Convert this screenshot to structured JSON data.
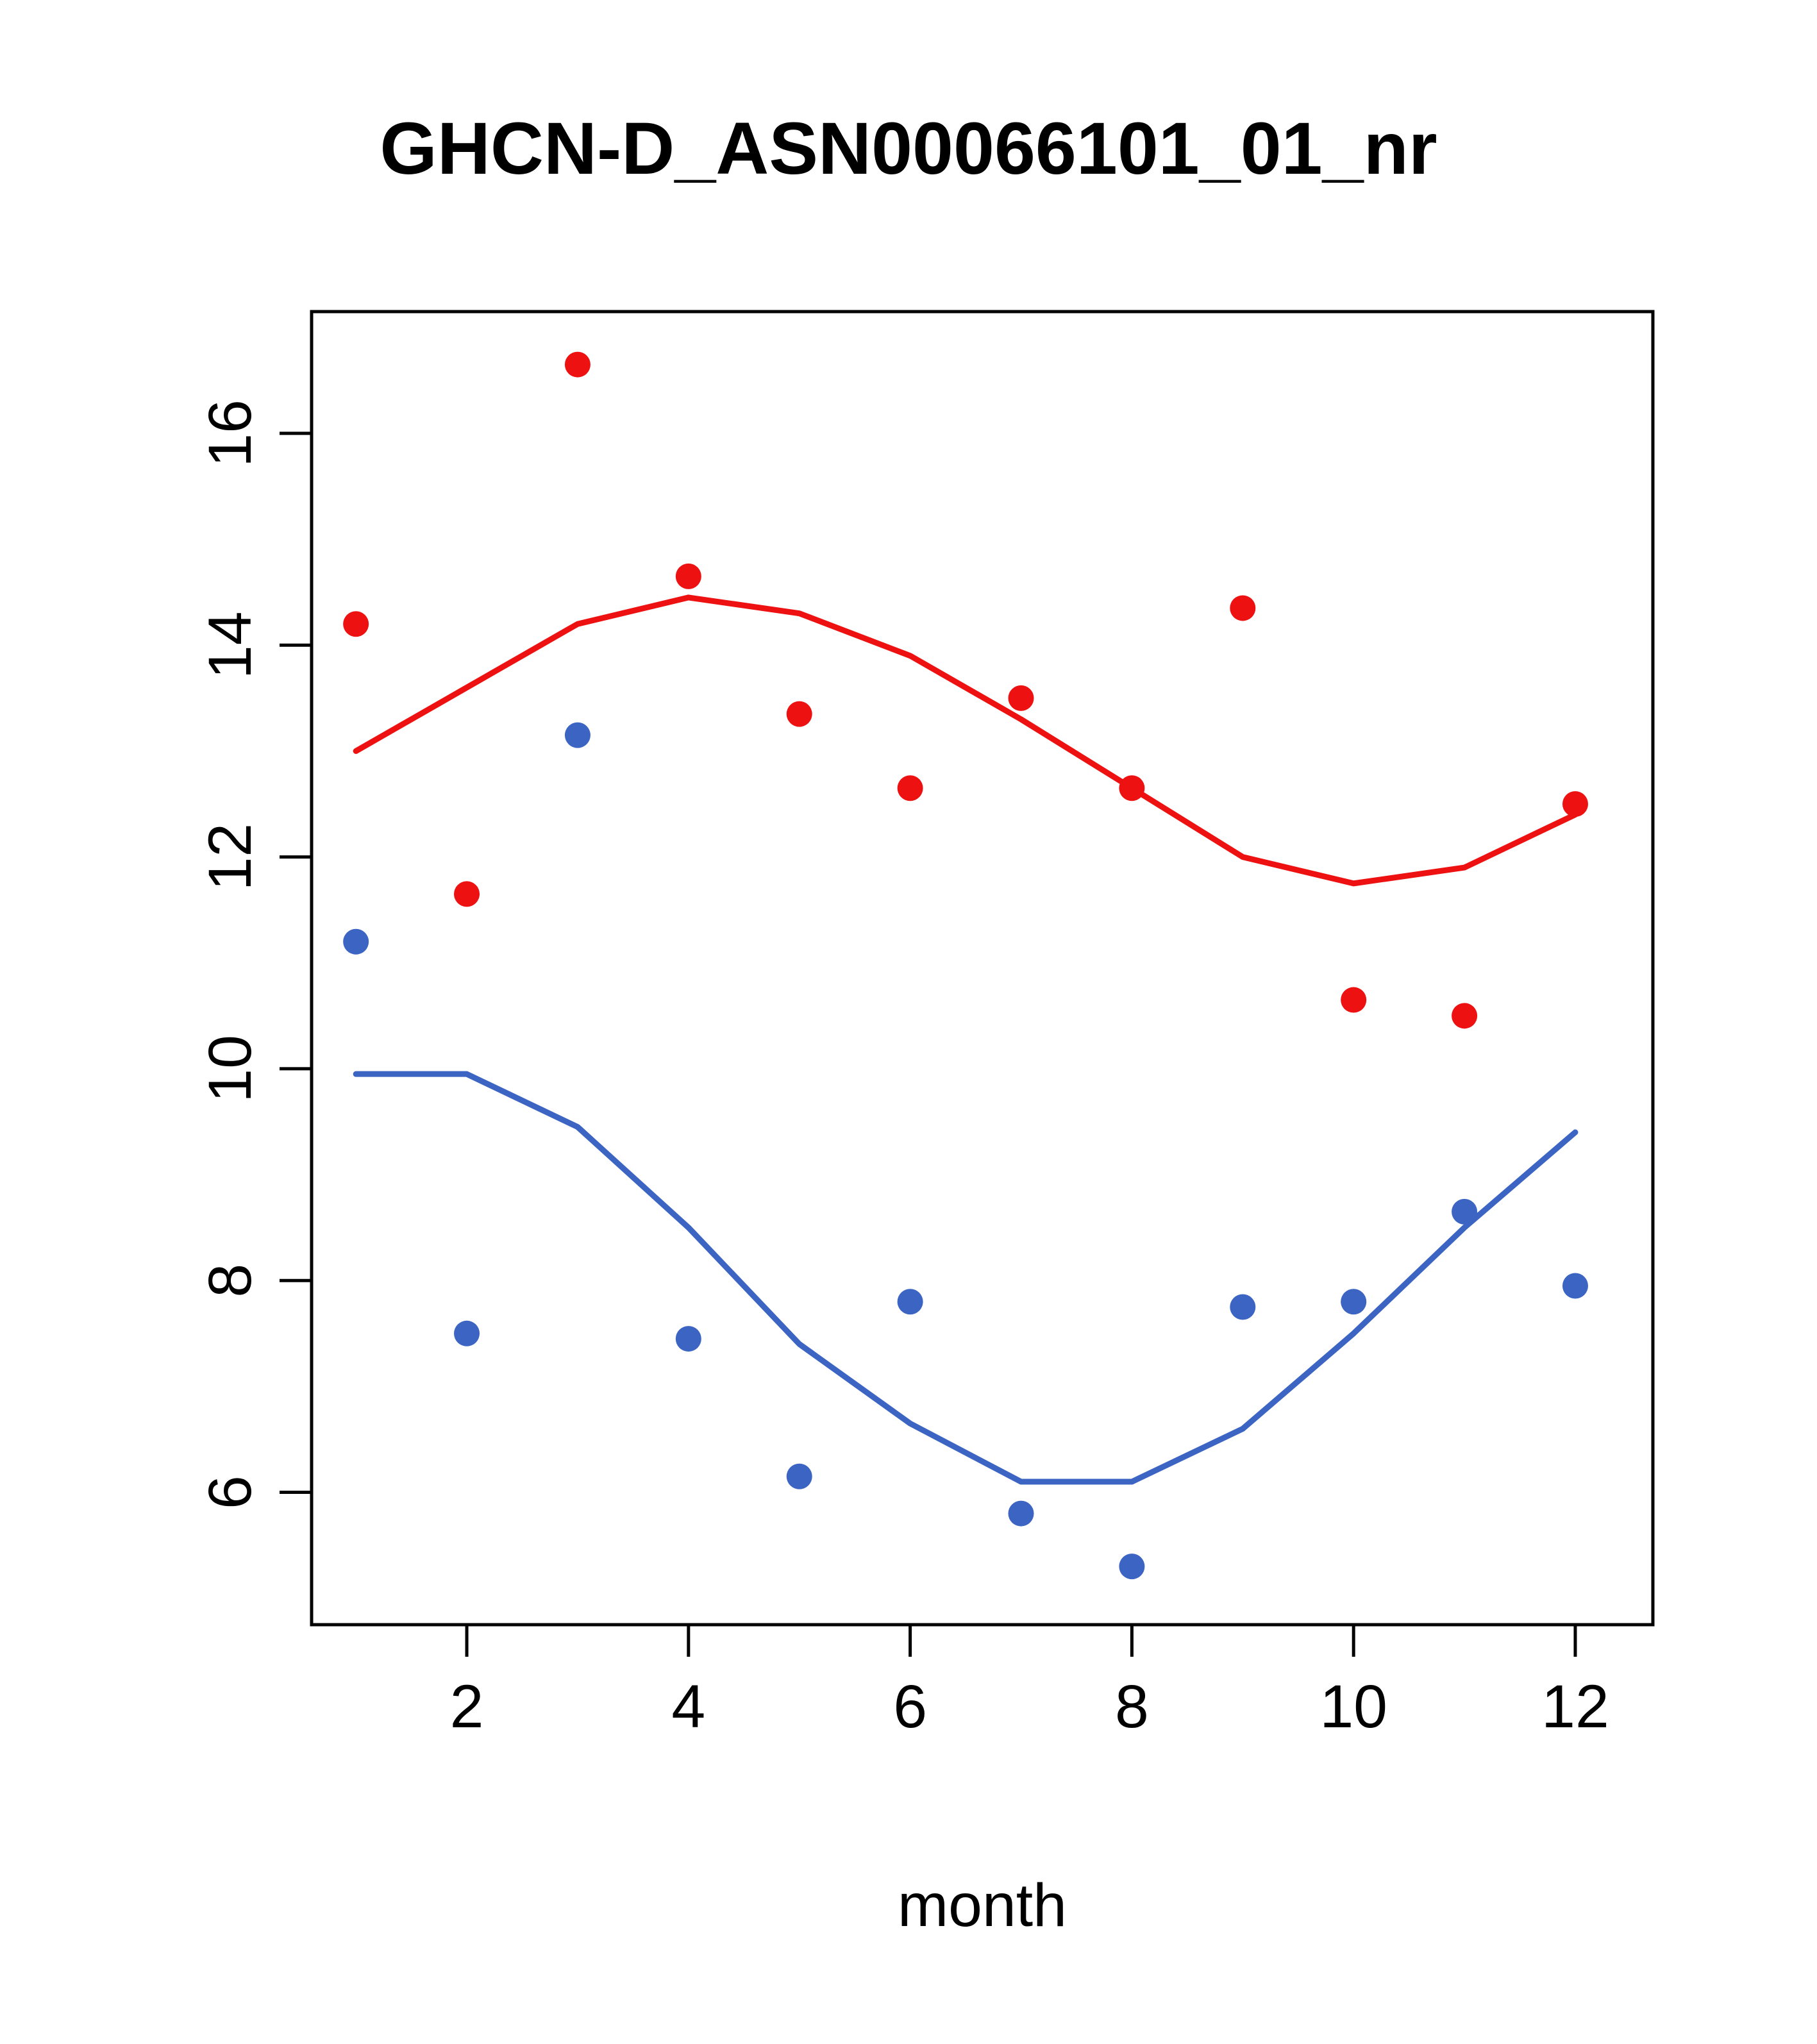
{
  "chart_data": {
    "type": "scatter",
    "title": "GHCN-D_ASN00066101_01_nr",
    "xlabel": "month",
    "ylabel": "",
    "x": [
      1,
      2,
      3,
      4,
      5,
      6,
      7,
      8,
      9,
      10,
      11,
      12
    ],
    "xlim": [
      0.6,
      12.7
    ],
    "ylim": [
      4.75,
      17.15
    ],
    "x_ticks": [
      2,
      4,
      6,
      8,
      10,
      12
    ],
    "y_ticks": [
      6,
      8,
      10,
      12,
      14,
      16
    ],
    "grid": false,
    "legend": null,
    "colors": {
      "red": "#EE1111",
      "blue": "#3C64C3",
      "axis": "#000000",
      "background": "#FFFFFF"
    },
    "series": [
      {
        "name": "red-points",
        "type": "points",
        "color": "#EE1111",
        "values": [
          14.2,
          11.65,
          16.65,
          14.65,
          13.35,
          12.65,
          13.5,
          12.65,
          14.35,
          10.65,
          10.5,
          12.5
        ]
      },
      {
        "name": "red-smooth-line",
        "type": "line",
        "color": "#EE1111",
        "values": [
          13.0,
          13.6,
          14.2,
          14.45,
          14.3,
          13.9,
          13.3,
          12.65,
          12.0,
          11.75,
          11.9,
          12.4
        ]
      },
      {
        "name": "blue-points",
        "type": "points",
        "color": "#3C64C3",
        "values": [
          11.2,
          7.5,
          13.15,
          7.45,
          6.15,
          7.8,
          5.8,
          5.3,
          7.75,
          7.8,
          8.65,
          7.95
        ]
      },
      {
        "name": "blue-smooth-line",
        "type": "line",
        "color": "#3C64C3",
        "values": [
          9.95,
          9.95,
          9.45,
          8.5,
          7.4,
          6.65,
          6.1,
          6.1,
          6.6,
          7.5,
          8.5,
          9.4
        ]
      }
    ]
  }
}
